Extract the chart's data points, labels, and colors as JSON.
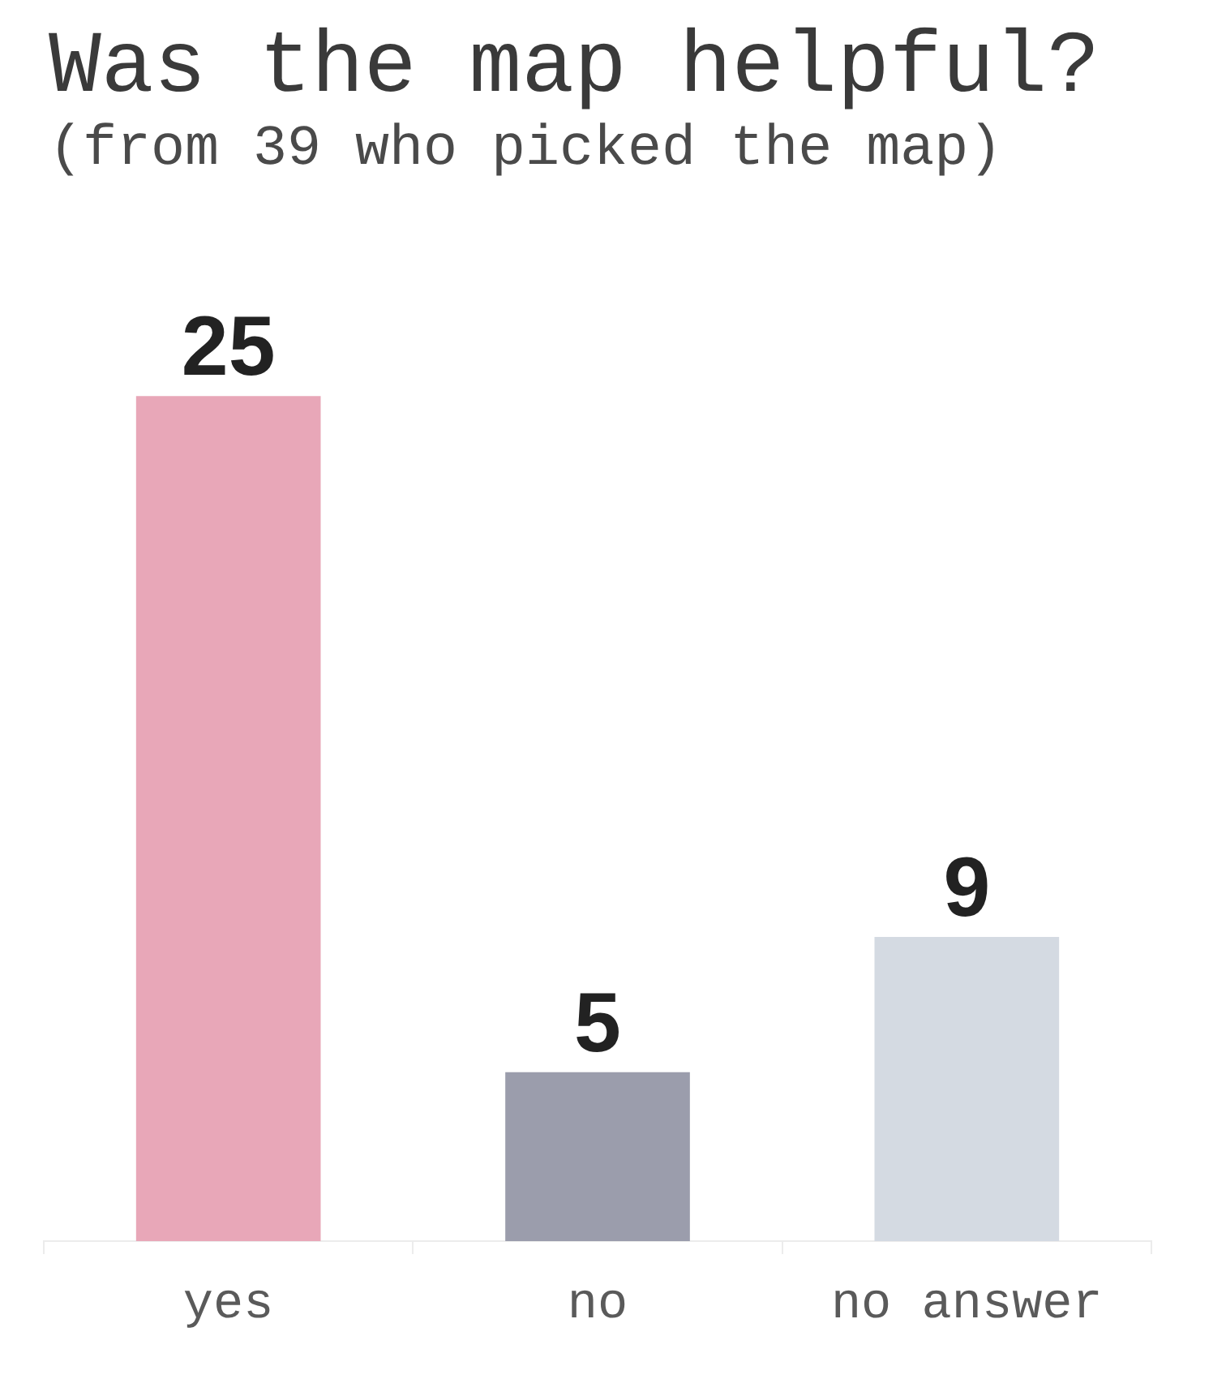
{
  "chart_data": {
    "type": "bar",
    "title": "Was the map helpful?",
    "subtitle": "(from 39 who picked the map)",
    "categories": [
      "yes",
      "no",
      "no answer"
    ],
    "values": [
      25,
      5,
      9
    ],
    "colors": [
      "#e8a7b8",
      "#9b9dac",
      "#d4dae2"
    ],
    "data_labels": true,
    "tick_labels": "x"
  }
}
